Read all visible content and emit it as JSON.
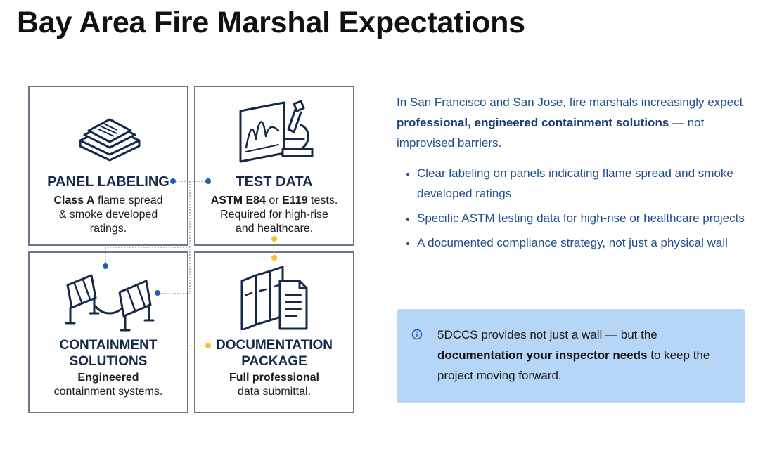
{
  "page": {
    "title": "Bay Area Fire Marshal Expectations"
  },
  "infographic": {
    "panels": {
      "panel_labeling": {
        "title": "PANEL LABELING",
        "desc_bold": "Class A",
        "desc_line1_rest": " flame spread",
        "desc_line2": "& smoke developed",
        "desc_line3": "ratings.",
        "icon": "layered-panel-icon"
      },
      "test_data": {
        "title": "TEST DATA",
        "desc_bold1": "ASTM E84",
        "desc_mid": " or ",
        "desc_bold2": "E119",
        "desc_line1_rest": " tests.",
        "desc_line2": "Required for high-rise",
        "desc_line3": "and healthcare.",
        "icon": "microscope-chart-icon"
      },
      "containment": {
        "title_line1": "CONTAINMENT",
        "title_line2": "SOLUTIONS",
        "desc_bold": "Engineered",
        "desc_line2": "containment systems.",
        "icon": "barrier-icon"
      },
      "documentation": {
        "title_line1": "DOCUMENTATION",
        "title_line2": "PACKAGE",
        "desc_bold": "Full professional",
        "desc_line2": "data submittal.",
        "icon": "binders-documents-icon"
      }
    },
    "colors": {
      "navy": "#14294a",
      "blue_dot": "#1f5fb0",
      "yellow_dot": "#f2c230",
      "border": "#6b7785"
    }
  },
  "intro": {
    "before": "In San Francisco and San Jose, fire marshals increasingly expect ",
    "bold": "professional, engineered containment solutions",
    "after": " — not improvised barriers."
  },
  "bullets": [
    "Clear labeling on panels indicating flame spread and smoke developed ratings",
    "Specific ASTM testing data for high-rise or healthcare projects",
    "A documented compliance strategy, not just a physical wall"
  ],
  "callout": {
    "icon": "info-icon",
    "before": "5DCCS provides not just a wall — but the ",
    "bold": "documentation your inspector needs",
    "after": " to keep the project moving forward."
  },
  "colors": {
    "text_blue": "#1f4e8c",
    "callout_bg": "#b5d6f7"
  }
}
